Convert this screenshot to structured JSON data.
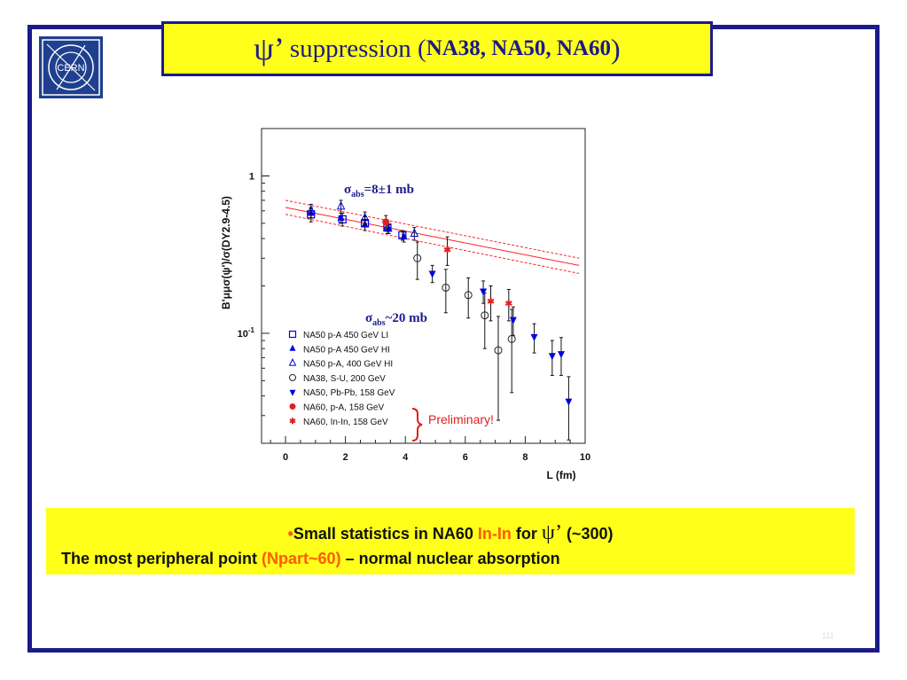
{
  "title": {
    "psi": "ψ",
    "prime": "’",
    "main": "suppression (",
    "experiments": "NA38, NA50, NA60",
    "close": ")"
  },
  "logo": {
    "text": "CERN"
  },
  "colors": {
    "frame": "#1b1b8a",
    "highlight": "#ffff1a",
    "accent": "#ff5a00",
    "na50": "#0000e0",
    "na60": "#e02020",
    "fit": "#ff2020",
    "logo_bg": "#1f3f8f"
  },
  "chart_data": {
    "type": "scatter",
    "ylabel": "B'μμσ(ψ')/σ(DY2.9-4.5)",
    "xlabel": "L (fm)",
    "xlim": [
      -0.8,
      10
    ],
    "ylim": [
      0.02,
      2
    ],
    "yscale": "log",
    "x_ticks": [
      "0",
      "2",
      "4",
      "6",
      "8",
      "10"
    ],
    "y_tick_labels": [
      "1",
      "10-1"
    ],
    "annotations": {
      "sigma_top": "σabs=8±1 mb",
      "sigma_bottom": "σabs~20 mb",
      "preliminary": "Preliminary!"
    },
    "fit": {
      "x": [
        0,
        9.8
      ],
      "center": [
        0.63,
        0.27
      ],
      "upper": [
        0.7,
        0.3
      ],
      "lower": [
        0.57,
        0.24
      ]
    },
    "series": [
      {
        "name": "NA50 p-A 450 GeV LI",
        "marker": "square-open",
        "color": "#0000e0",
        "points": [
          [
            0.85,
            0.57,
            0.06
          ],
          [
            1.9,
            0.53,
            0.05
          ],
          [
            2.65,
            0.5,
            0.05
          ],
          [
            3.4,
            0.47,
            0.04
          ],
          [
            3.9,
            0.42,
            0.03
          ]
        ]
      },
      {
        "name": "NA50 p-A 450 GeV HI",
        "marker": "triangle-up",
        "color": "#0000e0",
        "points": [
          [
            0.85,
            0.58,
            0.04
          ],
          [
            1.85,
            0.54,
            0.04
          ],
          [
            2.65,
            0.49,
            0.04
          ],
          [
            3.45,
            0.46,
            0.03
          ],
          [
            3.95,
            0.41,
            0.03
          ]
        ]
      },
      {
        "name": "NA50 p-A, 400 GeV HI",
        "marker": "triangle-open",
        "color": "#0000e0",
        "points": [
          [
            0.85,
            0.6,
            0.06
          ],
          [
            1.85,
            0.64,
            0.06
          ],
          [
            2.65,
            0.54,
            0.05
          ],
          [
            3.4,
            0.47,
            0.04
          ],
          [
            4.3,
            0.43,
            0.04
          ]
        ]
      },
      {
        "name": "NA38, S-U, 200 GeV",
        "marker": "circle-open",
        "color": "#222222",
        "points": [
          [
            4.4,
            0.3,
            0.08
          ],
          [
            5.35,
            0.195,
            0.06
          ],
          [
            6.1,
            0.175,
            0.05
          ],
          [
            6.65,
            0.13,
            0.05
          ],
          [
            7.1,
            0.078,
            0.05
          ],
          [
            7.55,
            0.092,
            0.05
          ]
        ]
      },
      {
        "name": "NA50, Pb-Pb, 158 GeV",
        "marker": "triangle-down",
        "color": "#0000e0",
        "points": [
          [
            4.9,
            0.24,
            0.03
          ],
          [
            6.6,
            0.185,
            0.03
          ],
          [
            7.6,
            0.122,
            0.025
          ],
          [
            8.3,
            0.095,
            0.02
          ],
          [
            8.9,
            0.072,
            0.018
          ],
          [
            9.2,
            0.074,
            0.02
          ],
          [
            9.45,
            0.037,
            0.016
          ]
        ]
      },
      {
        "name": "NA60, p-A, 158 GeV",
        "marker": "circle-filled",
        "color": "#e02020",
        "points": [
          [
            3.35,
            0.51,
            0.05
          ]
        ]
      },
      {
        "name": "NA60, In-In, 158 GeV",
        "marker": "star",
        "color": "#e02020",
        "points": [
          [
            5.4,
            0.34,
            0.07
          ],
          [
            6.85,
            0.16,
            0.04
          ],
          [
            7.45,
            0.155,
            0.035
          ]
        ]
      }
    ]
  },
  "notes": {
    "bullet": "•",
    "line1_a": "Small statistics in  NA60 ",
    "line1_b": "In-In",
    "line1_c": " for ",
    "line1_psi": "ψ’",
    "line1_d": " (~300)",
    "line2_a": "The most peripheral point ",
    "line2_b": "(Npart~60)",
    "line2_c": " – normal nuclear absorption"
  },
  "page_number": "111"
}
